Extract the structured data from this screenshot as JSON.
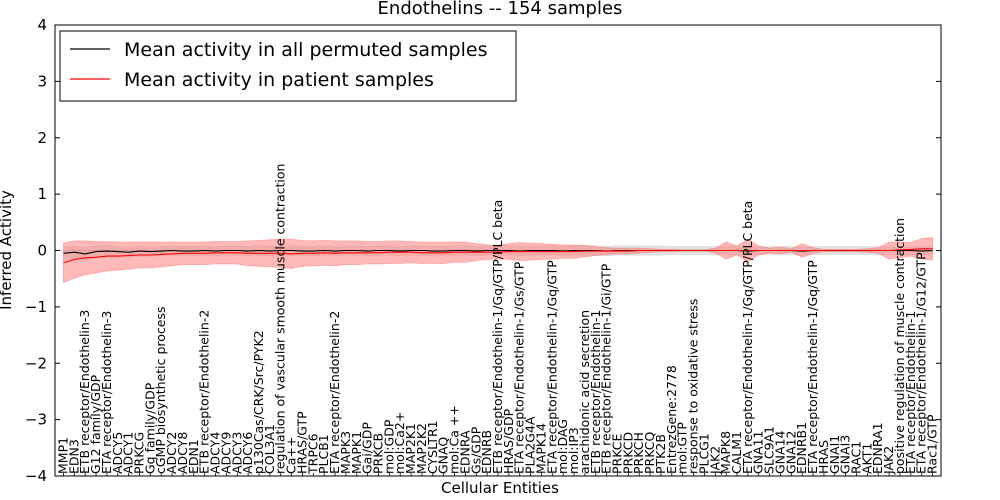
{
  "chart_data": {
    "type": "line",
    "title": "Endothelins -- 154 samples",
    "xlabel": "Cellular Entities",
    "ylabel": "Inferred Activity",
    "ylim": [
      -4,
      4
    ],
    "yticks": [
      -4,
      -3,
      -2,
      -1,
      0,
      1,
      2,
      3,
      4
    ],
    "ytick_labels": [
      "−4",
      "−3",
      "−2",
      "−1",
      "0",
      "1",
      "2",
      "3",
      "4"
    ],
    "legend_position": "upper-left",
    "colors": {
      "permuted": "#000000",
      "patient": "#ff0000",
      "permuted_band": "#c8c8c8",
      "patient_band": "#ff8080"
    },
    "series": [
      {
        "name": "Mean activity in all permuted samples",
        "color": "#000000",
        "band": "#c8c8c8"
      },
      {
        "name": "Mean activity in patient samples",
        "color": "#ff0000",
        "band": "#ff8080"
      }
    ],
    "entities": [
      "MMP1",
      "EDN3",
      "ETB receptor/Endothelin-3",
      "G12 family/GDP",
      "ETA receptor/Endothelin-3",
      "ADCY5",
      "ADCY1",
      "PRKCG",
      "Gq family/GDP",
      "cGMP biosynthetic process",
      "ADCY2",
      "ADCY8",
      "EDN1",
      "ETB receptor/Endothelin-2",
      "ADCY4",
      "ADCY9",
      "ADCY3",
      "ADCY6",
      "p130Cas/CRK/Src/PYK2",
      "COL3A1",
      "regulation of vascular smooth muscle contraction",
      "Ca++",
      "HRAS/GTP",
      "TRPC6",
      "PLCB1",
      "ETA receptor/Endothelin-2",
      "MAPK3",
      "MAPK1",
      "Gai/GDP",
      "PRKCB",
      "mol:GDP",
      "mol:Ca2+",
      "MAP2K1",
      "MAP2K2",
      "CYSLTR1",
      "GNAQ",
      "mol:Ca ++",
      "EDNRA",
      "Gs/GDP",
      "EDNRB",
      "ETB receptor/Endothelin-1/Gq/GTP/PLC beta",
      "HRAS/GDP",
      "ETA receptor/Endothelin-1/Gs/GTP",
      "PLA2G4A",
      "MAPK14",
      "ETA receptor/Endothelin-1/Gq/GTP",
      "mol:DAG",
      "mol:IP3",
      "arachidonic acid secretion",
      "ETB receptor/Endothelin-1",
      "ETB receptor/Endothelin-1/Gi/GTP",
      "PRKCE",
      "PRKCD",
      "PRKCH",
      "PRKCQ",
      "PTK2B",
      "EntrezGene:2778",
      "mol:GTP",
      "response to oxidative stress",
      "PLCG1",
      "JAK2",
      "MAPK8",
      "CALM1",
      "ETA receptor/Endothelin-1/Gq/GTP/PLC beta",
      "GNA11",
      "SLC9A1",
      "GNA14",
      "GNA12",
      "EDNRB1",
      "ETA receptor/Endothelin-1/Gq/GTP",
      "HRAS",
      "GNAI1",
      "GNAI3",
      "RAC1",
      "AKT1",
      "EDNRA1",
      "JAK2",
      "positive regulation of muscle contraction",
      "ETA receptor/Endothelin-1",
      "ETA receptor/Endothelin-1/G12/GTP",
      "Rac1/GTP"
    ],
    "permuted_mean": [
      -0.05,
      -0.03,
      -0.06,
      -0.02,
      -0.01,
      -0.02,
      -0.03,
      -0.01,
      -0.02,
      -0.01,
      0.0,
      -0.01,
      -0.01,
      0.0,
      -0.01,
      0.0,
      0.0,
      -0.01,
      0.0,
      -0.01,
      0.0,
      0.0,
      -0.01,
      -0.01,
      0.0,
      -0.01,
      0.0,
      0.0,
      -0.01,
      0.0,
      0.0,
      -0.01,
      0.0,
      0.0,
      -0.01,
      -0.01,
      0.0,
      0.0,
      -0.01,
      0.0,
      0.0,
      0.0,
      -0.01,
      0.0,
      0.0,
      0.0,
      -0.01,
      0.0,
      0.0,
      0.0,
      -0.01,
      0.0,
      0.0,
      0.0,
      0.0,
      0.0,
      0.0,
      0.0,
      0.0,
      0.0,
      0.0,
      0.0,
      0.0,
      -0.01,
      0.0,
      0.0,
      0.0,
      0.0,
      -0.01,
      0.0,
      0.0,
      0.0,
      0.0,
      0.0,
      0.0,
      0.0,
      0.0,
      0.0,
      0.0,
      -0.01,
      0.0
    ],
    "permuted_spread": [
      0.12,
      0.12,
      0.12,
      0.11,
      0.11,
      0.1,
      0.1,
      0.1,
      0.09,
      0.09,
      0.09,
      0.09,
      0.09,
      0.09,
      0.09,
      0.09,
      0.09,
      0.09,
      0.09,
      0.09,
      0.09,
      0.09,
      0.09,
      0.09,
      0.09,
      0.09,
      0.09,
      0.09,
      0.09,
      0.09,
      0.09,
      0.09,
      0.09,
      0.09,
      0.09,
      0.09,
      0.09,
      0.09,
      0.09,
      0.09,
      0.09,
      0.09,
      0.09,
      0.09,
      0.09,
      0.09,
      0.09,
      0.09,
      0.09,
      0.09,
      0.09,
      0.09,
      0.09,
      0.09,
      0.09,
      0.09,
      0.08,
      0.08,
      0.08,
      0.08,
      0.08,
      0.08,
      0.08,
      0.08,
      0.08,
      0.08,
      0.08,
      0.08,
      0.08,
      0.08,
      0.08,
      0.08,
      0.08,
      0.08,
      0.08,
      0.08,
      0.08,
      0.08,
      0.08,
      0.08,
      0.08
    ],
    "patient_mean": [
      -0.22,
      -0.16,
      -0.13,
      -0.12,
      -0.1,
      -0.1,
      -0.09,
      -0.08,
      -0.08,
      -0.07,
      -0.06,
      -0.05,
      -0.05,
      -0.05,
      -0.04,
      -0.04,
      -0.04,
      -0.05,
      -0.05,
      -0.05,
      -0.05,
      -0.06,
      -0.05,
      -0.05,
      -0.04,
      -0.05,
      -0.04,
      -0.04,
      -0.04,
      -0.04,
      -0.03,
      -0.03,
      -0.03,
      -0.04,
      -0.04,
      -0.04,
      -0.03,
      -0.03,
      -0.03,
      -0.03,
      -0.03,
      -0.02,
      -0.02,
      -0.02,
      -0.02,
      -0.02,
      -0.02,
      -0.02,
      -0.01,
      -0.01,
      -0.01,
      -0.01,
      -0.01,
      0.0,
      0.0,
      0.0,
      0.0,
      0.0,
      0.0,
      0.0,
      0.0,
      0.0,
      0.0,
      0.0,
      0.0,
      0.0,
      0.0,
      0.0,
      0.0,
      0.0,
      0.0,
      0.0,
      0.0,
      0.0,
      0.0,
      0.0,
      0.0,
      0.01,
      0.02,
      0.03,
      0.03
    ],
    "patient_spread": [
      0.35,
      0.33,
      0.3,
      0.28,
      0.26,
      0.25,
      0.24,
      0.23,
      0.23,
      0.22,
      0.21,
      0.2,
      0.2,
      0.2,
      0.2,
      0.2,
      0.2,
      0.22,
      0.23,
      0.24,
      0.25,
      0.26,
      0.23,
      0.22,
      0.22,
      0.22,
      0.21,
      0.21,
      0.2,
      0.2,
      0.2,
      0.2,
      0.19,
      0.19,
      0.19,
      0.19,
      0.18,
      0.18,
      0.15,
      0.13,
      0.12,
      0.14,
      0.16,
      0.15,
      0.14,
      0.13,
      0.12,
      0.12,
      0.1,
      0.08,
      0.06,
      0.05,
      0.05,
      0.04,
      0.03,
      0.02,
      0.02,
      0.01,
      0.01,
      0.01,
      0.04,
      0.15,
      0.08,
      0.2,
      0.08,
      0.04,
      0.06,
      0.03,
      0.12,
      0.05,
      0.02,
      0.02,
      0.02,
      0.02,
      0.03,
      0.05,
      0.15,
      0.14,
      0.12,
      0.18,
      0.2
    ]
  }
}
